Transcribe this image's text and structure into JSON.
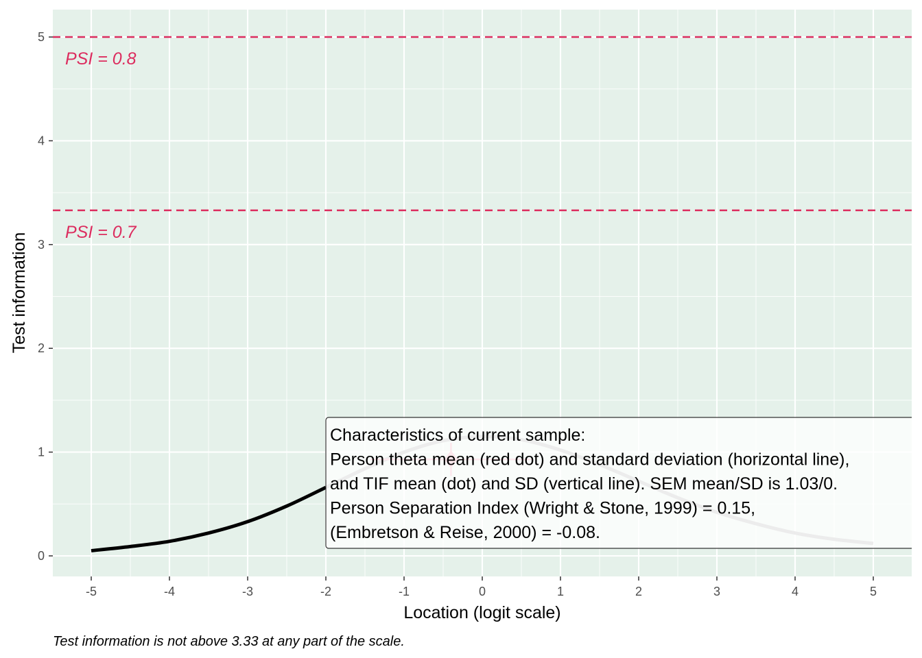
{
  "chart_data": {
    "type": "line",
    "xlabel": "Location (logit scale)",
    "ylabel": "Test information",
    "xlim": [
      -5.5,
      5.5
    ],
    "ylim": [
      -0.2,
      5.25
    ],
    "x_ticks": [
      -5,
      -4,
      -3,
      -2,
      -1,
      0,
      1,
      2,
      3,
      4,
      5
    ],
    "y_ticks": [
      0,
      1,
      2,
      3,
      4,
      5
    ],
    "grid": true,
    "panel_background": "#e5f1ea",
    "series": [
      {
        "color": "#000000",
        "x": [
          -5,
          -4.5,
          -4,
          -3.5,
          -3,
          -2.5,
          -2
        ],
        "values": [
          0.05,
          0.09,
          0.14,
          0.22,
          0.33,
          0.48,
          0.66
        ]
      },
      {
        "color": "#b3b3b3",
        "x": [
          -2,
          -1.5,
          -1,
          -0.5,
          0,
          0.5,
          1,
          1.5,
          2,
          2.5,
          3,
          3.5,
          4,
          4.5,
          5
        ],
        "values": [
          0.66,
          0.84,
          1.0,
          1.11,
          1.15,
          1.12,
          1.02,
          0.88,
          0.72,
          0.56,
          0.42,
          0.31,
          0.22,
          0.16,
          0.12
        ]
      }
    ],
    "reference_lines": [
      {
        "y": 5.0,
        "label": "PSI = 0.8",
        "color": "#dc2d5f"
      },
      {
        "y": 3.33,
        "label": "PSI = 0.7",
        "color": "#dc2d5f"
      }
    ],
    "sample_point": {
      "x": -0.4,
      "y": 0.93,
      "x_sd": 1.03,
      "y_sd": 0.16,
      "color": "#f2a0b5"
    },
    "annotation": {
      "lines": [
        "Characteristics of current sample:",
        "Person theta mean (red dot) and standard deviation (horizontal line),",
        "and TIF mean (dot) and SD (vertical line). SEM mean/SD is 1.03/0.",
        "Person Separation Index (Wright & Stone, 1999) = 0.15,",
        "(Embretson & Reise, 2000) = -0.08."
      ]
    },
    "caption": "Test information is not above 3.33 at any part of the scale."
  }
}
